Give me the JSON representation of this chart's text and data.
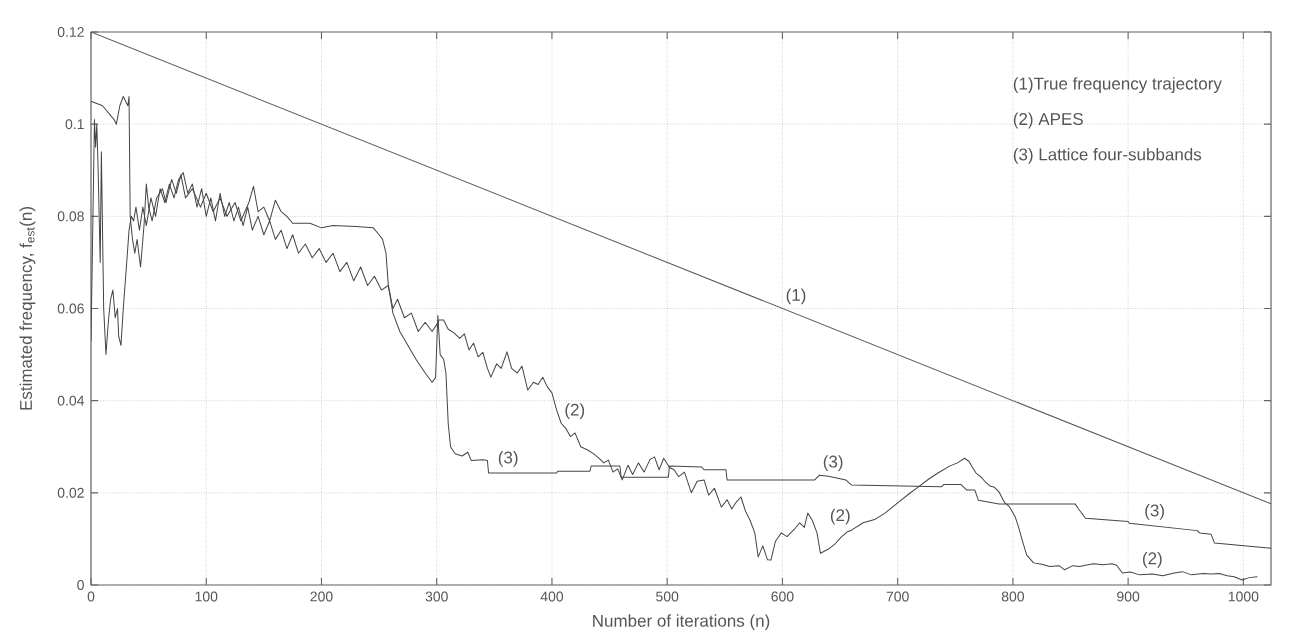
{
  "chart_data": {
    "type": "line",
    "xlabel": "Number of iterations (n)",
    "ylabel": "Estimated frequency, f$_{est}$(n)",
    "xlim": [
      0,
      1024
    ],
    "ylim": [
      0,
      0.12
    ],
    "xticks": [
      0,
      100,
      200,
      300,
      400,
      500,
      600,
      700,
      800,
      900,
      1000
    ],
    "yticks": [
      0,
      0.02,
      0.04,
      0.06,
      0.08,
      0.1,
      0.12
    ],
    "grid": true,
    "series": [
      {
        "color": "#555555",
        "x": [
          0,
          1024
        ],
        "values": [
          0.12,
          0.0176
        ]
      },
      {
        "color": "#444444",
        "x": [
          0,
          3,
          4,
          5,
          6,
          8,
          9,
          11,
          13,
          15,
          17,
          19,
          21,
          23,
          24,
          26,
          28,
          31,
          33,
          35,
          37,
          39,
          42,
          45,
          48,
          52,
          56,
          60,
          64,
          68,
          72,
          76,
          80,
          84,
          88,
          92,
          96,
          100,
          104,
          108,
          112,
          116,
          120,
          124,
          128,
          132,
          136,
          140,
          145,
          150,
          155,
          160,
          165,
          170,
          175,
          180,
          186,
          192,
          198,
          204,
          210,
          216,
          222,
          228,
          234,
          240,
          246,
          252,
          258,
          262,
          266,
          272,
          278,
          284,
          290,
          296,
          300,
          302,
          306,
          310,
          315,
          320,
          324,
          328,
          332,
          336,
          340,
          344,
          347,
          352,
          356,
          361,
          365,
          370,
          374,
          379,
          384,
          388,
          392,
          396,
          400,
          404,
          408,
          412,
          416,
          420,
          425,
          431,
          436,
          441,
          445,
          449,
          453,
          457,
          461,
          466,
          470,
          475,
          480,
          485,
          489,
          493,
          497,
          502,
          506,
          510,
          515,
          521,
          526,
          532,
          536,
          541,
          547,
          552,
          556,
          560,
          564,
          568,
          572,
          576,
          579,
          583,
          587,
          590,
          594,
          599,
          604,
          610,
          615,
          619,
          622,
          626,
          630,
          633,
          640,
          646,
          651,
          656,
          660,
          670,
          680,
          689,
          700,
          710,
          718,
          727,
          735,
          745,
          752,
          758,
          762,
          765,
          768,
          772,
          776,
          780,
          784,
          788,
          793,
          797,
          802,
          805,
          808,
          812,
          818,
          825,
          832,
          840,
          845,
          852,
          858,
          863,
          870,
          878,
          886,
          890,
          895,
          902,
          910,
          921,
          930,
          940,
          947,
          955,
          965,
          972,
          979,
          986,
          992,
          999,
          1005,
          1012
        ],
        "values": [
          0.053,
          0.101,
          0.095,
          0.1,
          0.092,
          0.07,
          0.094,
          0.06,
          0.05,
          0.057,
          0.062,
          0.064,
          0.058,
          0.06,
          0.054,
          0.052,
          0.06,
          0.07,
          0.077,
          0.08,
          0.079,
          0.082,
          0.077,
          0.082,
          0.078,
          0.084,
          0.08,
          0.086,
          0.083,
          0.087,
          0.084,
          0.088,
          0.0895,
          0.085,
          0.087,
          0.082,
          0.086,
          0.08,
          0.084,
          0.079,
          0.085,
          0.08,
          0.083,
          0.079,
          0.082,
          0.078,
          0.082,
          0.077,
          0.08,
          0.076,
          0.079,
          0.075,
          0.077,
          0.073,
          0.076,
          0.072,
          0.074,
          0.071,
          0.073,
          0.07,
          0.072,
          0.068,
          0.07,
          0.066,
          0.069,
          0.065,
          0.067,
          0.064,
          0.065,
          0.06,
          0.062,
          0.058,
          0.059,
          0.055,
          0.057,
          0.055,
          0.0565,
          0.0575,
          0.0575,
          0.0555,
          0.0547,
          0.0535,
          0.0545,
          0.051,
          0.0525,
          0.0495,
          0.0505,
          0.047,
          0.0451,
          0.048,
          0.047,
          0.0506,
          0.047,
          0.046,
          0.0475,
          0.0423,
          0.044,
          0.0435,
          0.0451,
          0.043,
          0.0417,
          0.038,
          0.0351,
          0.034,
          0.0322,
          0.033,
          0.03,
          0.0293,
          0.0285,
          0.0275,
          0.0265,
          0.0271,
          0.0245,
          0.0252,
          0.0228,
          0.026,
          0.024,
          0.0265,
          0.0245,
          0.0272,
          0.0278,
          0.025,
          0.0275,
          0.0255,
          0.025,
          0.0235,
          0.0245,
          0.02,
          0.0225,
          0.0228,
          0.0195,
          0.021,
          0.0169,
          0.0185,
          0.0165,
          0.018,
          0.0191,
          0.016,
          0.014,
          0.0113,
          0.0061,
          0.0085,
          0.0055,
          0.0054,
          0.0095,
          0.0113,
          0.0105,
          0.012,
          0.0135,
          0.0125,
          0.0156,
          0.014,
          0.0113,
          0.0069,
          0.0078,
          0.009,
          0.0104,
          0.0115,
          0.0119,
          0.0135,
          0.0142,
          0.0156,
          0.0178,
          0.0198,
          0.0213,
          0.023,
          0.0243,
          0.0258,
          0.0265,
          0.0275,
          0.0268,
          0.0255,
          0.0243,
          0.0235,
          0.0224,
          0.0215,
          0.0212,
          0.0202,
          0.0178,
          0.017,
          0.0148,
          0.0125,
          0.0098,
          0.0065,
          0.0048,
          0.0045,
          0.004,
          0.0042,
          0.0033,
          0.0042,
          0.004,
          0.0043,
          0.0046,
          0.0044,
          0.0046,
          0.0043,
          0.0026,
          0.0028,
          0.0022,
          0.0024,
          0.002,
          0.0026,
          0.0029,
          0.0022,
          0.0025,
          0.0024,
          0.0025,
          0.002,
          0.0018,
          0.0011,
          0.0016,
          0.0018
        ]
      },
      {
        "color": "#444444",
        "x": [
          0,
          10,
          20,
          22,
          25,
          28,
          32,
          33,
          34,
          36,
          38,
          40,
          43,
          46,
          48,
          50,
          53,
          57,
          62,
          65,
          70,
          74,
          78,
          82,
          88,
          95,
          100,
          106,
          112,
          118,
          125,
          130,
          137,
          141,
          145,
          150,
          155,
          160,
          165,
          170,
          175,
          190,
          200,
          210,
          230,
          245,
          250,
          253,
          256,
          258,
          262,
          268,
          275,
          282,
          290,
          296,
          299,
          301,
          303,
          306,
          308,
          310,
          312,
          316,
          322,
          327,
          330,
          340,
          344,
          345,
          404,
          405,
          433,
          434,
          459,
          460,
          501,
          502,
          530,
          532,
          551,
          552,
          628,
          632,
          640,
          655,
          660,
          738,
          740,
          755,
          760,
          767,
          770,
          788,
          854,
          857,
          863,
          900,
          901,
          960,
          962,
          972,
          975,
          1024
        ],
        "values": [
          0.105,
          0.104,
          0.101,
          0.1,
          0.104,
          0.106,
          0.104,
          0.106,
          0.08,
          0.075,
          0.072,
          0.075,
          0.069,
          0.078,
          0.087,
          0.082,
          0.079,
          0.084,
          0.086,
          0.083,
          0.088,
          0.085,
          0.089,
          0.084,
          0.086,
          0.082,
          0.085,
          0.081,
          0.084,
          0.08,
          0.083,
          0.079,
          0.083,
          0.0865,
          0.081,
          0.082,
          0.079,
          0.0835,
          0.081,
          0.08,
          0.0785,
          0.0785,
          0.0775,
          0.078,
          0.0778,
          0.0775,
          0.076,
          0.075,
          0.072,
          0.065,
          0.059,
          0.055,
          0.052,
          0.049,
          0.046,
          0.044,
          0.045,
          0.0585,
          0.05,
          0.049,
          0.046,
          0.035,
          0.03,
          0.0285,
          0.028,
          0.0288,
          0.027,
          0.0272,
          0.027,
          0.0243,
          0.0243,
          0.0247,
          0.0247,
          0.0258,
          0.0258,
          0.0234,
          0.0234,
          0.0258,
          0.0256,
          0.025,
          0.025,
          0.0228,
          0.0228,
          0.0238,
          0.0236,
          0.0228,
          0.0217,
          0.0213,
          0.0218,
          0.0218,
          0.0206,
          0.0206,
          0.0184,
          0.0176,
          0.0176,
          0.0165,
          0.0145,
          0.0138,
          0.0134,
          0.0118,
          0.0113,
          0.011,
          0.0091,
          0.008
        ]
      }
    ],
    "annotations": [
      "(1)True frequency trajectory",
      "(2) APES",
      "(3) Lattice four-subbands",
      {
        "text": "(1)",
        "x": 600,
        "y": 0.06
      },
      {
        "text": "(2)",
        "x": 408,
        "y": 0.0351
      },
      {
        "text": "(3)",
        "x": 362,
        "y": 0.0243
      },
      {
        "text": "(3)",
        "x": 644,
        "y": 0.0234
      },
      {
        "text": "(2)",
        "x": 662,
        "y": 0.0122
      },
      {
        "text": "(3)",
        "x": 923,
        "y": 0.0128
      },
      {
        "text": "(2)",
        "x": 921,
        "y": 0.0024
      }
    ]
  }
}
